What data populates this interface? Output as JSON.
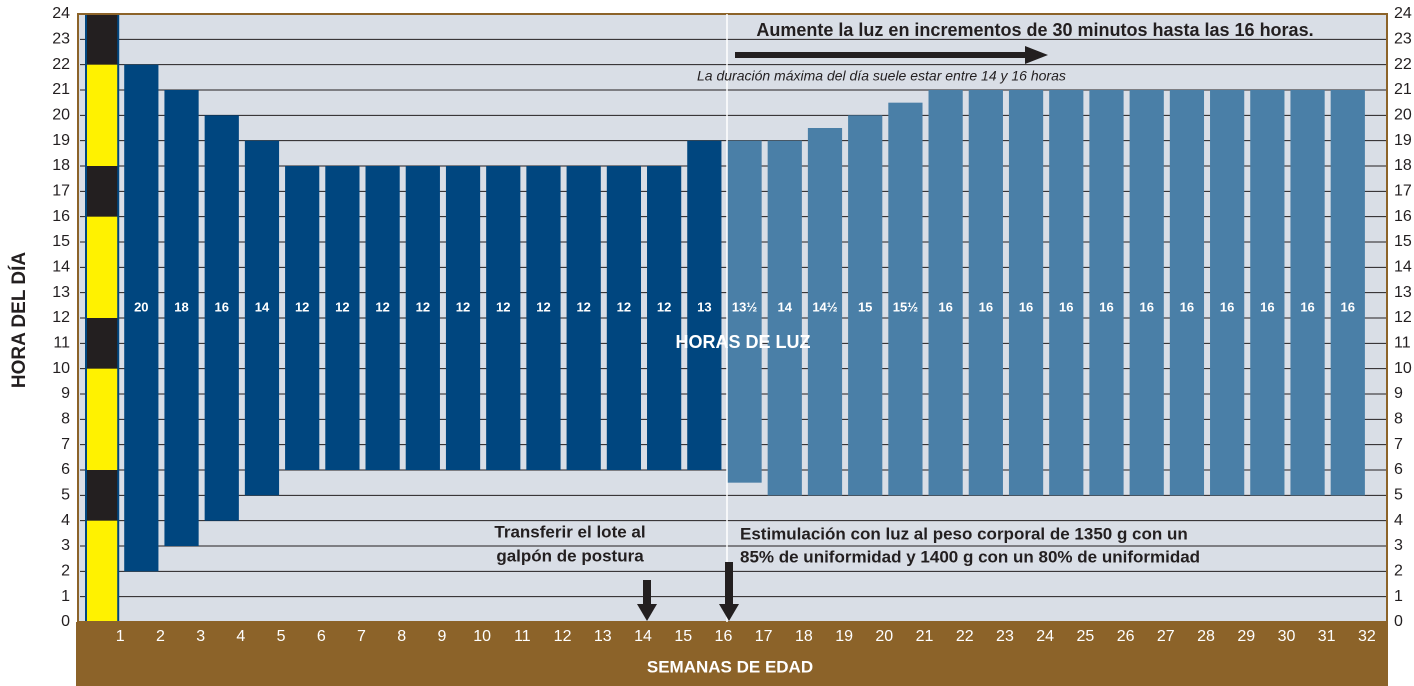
{
  "chart_data": {
    "type": "range-bar",
    "ylabel": "HORA DEL DÍA",
    "xlabel": "SEMANAS DE EDAD",
    "ylim": [
      0,
      24
    ],
    "yticks": [
      0,
      1,
      2,
      3,
      4,
      5,
      6,
      7,
      8,
      9,
      10,
      11,
      12,
      13,
      14,
      15,
      16,
      17,
      18,
      19,
      20,
      21,
      22,
      23,
      24
    ],
    "xlim": [
      0,
      32.5
    ],
    "xticks": [
      1,
      2,
      3,
      4,
      5,
      6,
      7,
      8,
      9,
      10,
      11,
      12,
      13,
      14,
      15,
      16,
      17,
      18,
      19,
      20,
      21,
      22,
      23,
      24,
      25,
      26,
      27,
      28,
      29,
      30,
      31,
      32
    ],
    "grid": true,
    "strip": {
      "low": [
        22,
        18,
        16,
        12,
        10,
        6,
        4,
        0
      ],
      "high": [
        24,
        22,
        18,
        16,
        12,
        10,
        6,
        4
      ],
      "colors": [
        "#231f20",
        "#fff200",
        "#231f20",
        "#fff200",
        "#231f20",
        "#fff200",
        "#231f20",
        "#fff200"
      ]
    },
    "bars": {
      "x": [
        2,
        3,
        4,
        5,
        6,
        7,
        8,
        9,
        10,
        11,
        12,
        13,
        14,
        15,
        16,
        17,
        18,
        19,
        20,
        21,
        22,
        23,
        24,
        25,
        26,
        27,
        28,
        29,
        30,
        31,
        32
      ],
      "low": [
        2,
        3,
        4,
        5,
        6,
        6,
        6,
        6,
        6,
        6,
        6,
        6,
        6,
        6,
        6,
        5.5,
        5,
        5,
        5,
        5,
        5,
        5,
        5,
        5,
        5,
        5,
        5,
        5,
        5,
        5,
        5
      ],
      "high": [
        22,
        21,
        20,
        19,
        18,
        18,
        18,
        18,
        18,
        18,
        18,
        18,
        18,
        18,
        19,
        19,
        19,
        19.5,
        20,
        20.5,
        21,
        21,
        21,
        21,
        21,
        21,
        21,
        21,
        21,
        21,
        21
      ],
      "values": [
        20,
        18,
        16,
        14,
        12,
        12,
        12,
        12,
        12,
        12,
        12,
        12,
        12,
        12,
        13,
        13.5,
        14,
        14.5,
        15,
        15.5,
        16,
        16,
        16,
        16,
        16,
        16,
        16,
        16,
        16,
        16,
        16
      ],
      "value_labels": [
        "20",
        "18",
        "16",
        "14",
        "12",
        "12",
        "12",
        "12",
        "12",
        "12",
        "12",
        "12",
        "12",
        "12",
        "13",
        "13½",
        "14",
        "14½",
        "15",
        "15½",
        "16",
        "16",
        "16",
        "16",
        "16",
        "16",
        "16",
        "16",
        "16",
        "16",
        "16"
      ],
      "colors": [
        "#00467f",
        "#00467f",
        "#00467f",
        "#00467f",
        "#00467f",
        "#00467f",
        "#00467f",
        "#00467f",
        "#00467f",
        "#00467f",
        "#00467f",
        "#00467f",
        "#00467f",
        "#00467f",
        "#00467f",
        "#4a7fa7",
        "#4a7fa7",
        "#4a7fa7",
        "#4a7fa7",
        "#4a7fa7",
        "#4a7fa7",
        "#4a7fa7",
        "#4a7fa7",
        "#4a7fa7",
        "#4a7fa7",
        "#4a7fa7",
        "#4a7fa7",
        "#4a7fa7",
        "#4a7fa7",
        "#4a7fa7",
        "#4a7fa7"
      ]
    },
    "annotations": {
      "top": "Aumente la luz en incrementos de 30 minutos hasta las 16 horas.",
      "note": "La duración máxima del día suele estar entre 14 y 16 horas",
      "center": "HORAS DE LUZ",
      "transfer": [
        "Transferir el lote al",
        "galpón de postura"
      ],
      "stimulation": [
        "Estimulación con luz al peso corporal de 1350 g con un",
        "85% de uniformidad y 1400 g con un 80% de uniformidad"
      ]
    }
  }
}
